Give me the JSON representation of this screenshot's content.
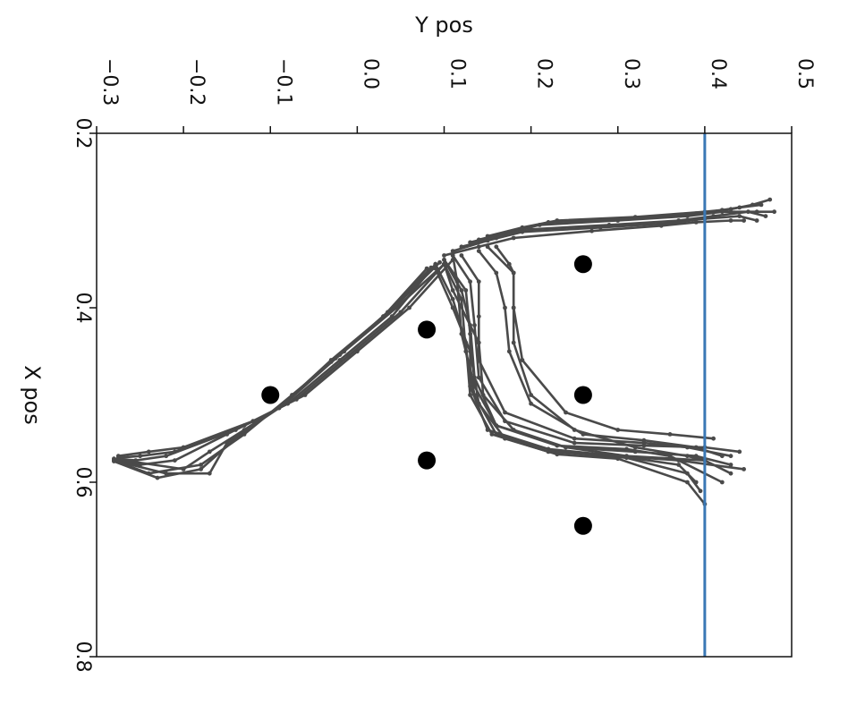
{
  "chart_data": {
    "type": "line",
    "xlabel": "X pos",
    "ylabel": "Y pos",
    "xlim": [
      0.2,
      0.8
    ],
    "ylim": [
      -0.3,
      0.5
    ],
    "x_ticks": [
      "0.2",
      "0.4",
      "0.6",
      "0.8"
    ],
    "y_ticks": [
      "−0.3",
      "−0.2",
      "−0.1",
      "0.0",
      "0.1",
      "0.2",
      "0.3",
      "0.4",
      "0.5"
    ],
    "grid": false,
    "reference_line": {
      "y": 0.4,
      "color": "#3a78b5"
    },
    "obstacles": [
      {
        "x": 0.35,
        "y": 0.26
      },
      {
        "x": 0.425,
        "y": 0.08
      },
      {
        "x": 0.5,
        "y": -0.1
      },
      {
        "x": 0.5,
        "y": 0.26
      },
      {
        "x": 0.575,
        "y": 0.08
      },
      {
        "x": 0.65,
        "y": 0.26
      }
    ],
    "trajectory_color": "#4a4a4a",
    "series": [
      {
        "x": [
          0.325,
          0.315,
          0.305,
          0.3,
          0.295,
          0.29,
          0.29,
          0.29
        ],
        "y": [
          0.13,
          0.17,
          0.21,
          0.3,
          0.38,
          0.42,
          0.46,
          0.48
        ]
      },
      {
        "x": [
          0.33,
          0.32,
          0.31,
          0.305,
          0.3,
          0.295,
          0.29,
          0.295
        ],
        "y": [
          0.12,
          0.16,
          0.2,
          0.29,
          0.37,
          0.41,
          0.45,
          0.47
        ]
      },
      {
        "x": [
          0.322,
          0.312,
          0.302,
          0.298,
          0.292,
          0.288,
          0.285,
          0.282
        ],
        "y": [
          0.14,
          0.18,
          0.22,
          0.31,
          0.39,
          0.42,
          0.44,
          0.465
        ]
      },
      {
        "x": [
          0.335,
          0.323,
          0.313,
          0.308,
          0.303,
          0.298,
          0.295,
          0.3
        ],
        "y": [
          0.11,
          0.15,
          0.19,
          0.28,
          0.36,
          0.4,
          0.44,
          0.46
        ]
      },
      {
        "x": [
          0.318,
          0.308,
          0.3,
          0.296,
          0.29,
          0.287,
          0.282,
          0.276
        ],
        "y": [
          0.15,
          0.19,
          0.23,
          0.32,
          0.4,
          0.43,
          0.455,
          0.475
        ]
      },
      {
        "x": [
          0.34,
          0.33,
          0.32,
          0.312,
          0.306,
          0.302,
          0.3,
          0.3
        ],
        "y": [
          0.1,
          0.14,
          0.18,
          0.27,
          0.35,
          0.39,
          0.43,
          0.445
        ]
      },
      {
        "x": [
          0.33,
          0.36,
          0.4,
          0.44,
          0.5,
          0.54,
          0.56,
          0.57,
          0.575
        ],
        "y": [
          0.15,
          0.18,
          0.18,
          0.18,
          0.2,
          0.25,
          0.32,
          0.38,
          0.4
        ]
      },
      {
        "x": [
          0.33,
          0.35,
          0.36,
          0.4,
          0.46,
          0.52,
          0.54,
          0.545,
          0.55
        ],
        "y": [
          0.16,
          0.175,
          0.18,
          0.18,
          0.19,
          0.24,
          0.3,
          0.36,
          0.41
        ]
      },
      {
        "x": [
          0.335,
          0.36,
          0.4,
          0.45,
          0.51,
          0.545,
          0.552,
          0.56,
          0.57
        ],
        "y": [
          0.14,
          0.16,
          0.17,
          0.175,
          0.2,
          0.26,
          0.33,
          0.39,
          0.42
        ]
      },
      {
        "x": [
          0.34,
          0.37,
          0.41,
          0.46,
          0.52,
          0.55,
          0.555,
          0.56,
          0.57
        ],
        "y": [
          0.12,
          0.14,
          0.14,
          0.14,
          0.17,
          0.25,
          0.33,
          0.38,
          0.43
        ]
      },
      {
        "x": [
          0.34,
          0.37,
          0.42,
          0.48,
          0.53,
          0.555,
          0.558,
          0.56,
          0.565
        ],
        "y": [
          0.11,
          0.13,
          0.135,
          0.14,
          0.17,
          0.25,
          0.33,
          0.4,
          0.44
        ]
      },
      {
        "x": [
          0.345,
          0.38,
          0.42,
          0.48,
          0.535,
          0.56,
          0.565,
          0.57,
          0.58
        ],
        "y": [
          0.1,
          0.12,
          0.13,
          0.135,
          0.16,
          0.24,
          0.32,
          0.39,
          0.43
        ]
      },
      {
        "x": [
          0.345,
          0.38,
          0.43,
          0.49,
          0.54,
          0.562,
          0.57,
          0.575,
          0.585
        ],
        "y": [
          0.1,
          0.125,
          0.13,
          0.13,
          0.15,
          0.22,
          0.3,
          0.37,
          0.445
        ]
      },
      {
        "x": [
          0.35,
          0.39,
          0.44,
          0.5,
          0.545,
          0.565,
          0.57,
          0.58,
          0.6
        ],
        "y": [
          0.09,
          0.11,
          0.125,
          0.13,
          0.155,
          0.22,
          0.3,
          0.37,
          0.39
        ]
      },
      {
        "x": [
          0.35,
          0.39,
          0.45,
          0.5,
          0.545,
          0.565,
          0.572,
          0.59,
          0.61
        ],
        "y": [
          0.1,
          0.12,
          0.125,
          0.135,
          0.16,
          0.23,
          0.31,
          0.38,
          0.395
        ]
      },
      {
        "x": [
          0.355,
          0.4,
          0.45,
          0.51,
          0.55,
          0.568,
          0.573,
          0.6,
          0.625
        ],
        "y": [
          0.09,
          0.11,
          0.13,
          0.14,
          0.17,
          0.23,
          0.3,
          0.38,
          0.4
        ]
      },
      {
        "x": [
          0.35,
          0.38,
          0.44,
          0.5,
          0.54,
          0.56,
          0.57,
          0.575,
          0.59
        ],
        "y": [
          0.1,
          0.11,
          0.14,
          0.145,
          0.18,
          0.24,
          0.31,
          0.4,
          0.43
        ]
      },
      {
        "x": [
          0.34,
          0.37,
          0.43,
          0.49,
          0.535,
          0.558,
          0.562,
          0.57,
          0.6
        ],
        "y": [
          0.11,
          0.115,
          0.12,
          0.135,
          0.16,
          0.23,
          0.31,
          0.36,
          0.42
        ]
      },
      {
        "x": [
          0.345,
          0.4,
          0.45,
          0.5,
          0.53,
          0.56,
          0.565,
          0.57
        ],
        "y": [
          0.11,
          0.06,
          0.0,
          -0.06,
          -0.12,
          -0.2,
          -0.24,
          -0.275
        ]
      },
      {
        "x": [
          0.35,
          0.405,
          0.455,
          0.505,
          0.535,
          0.565,
          0.57,
          0.572
        ],
        "y": [
          0.1,
          0.05,
          -0.01,
          -0.07,
          -0.13,
          -0.21,
          -0.25,
          -0.275
        ]
      },
      {
        "x": [
          0.35,
          0.41,
          0.46,
          0.51,
          0.54,
          0.57,
          0.575,
          0.573
        ],
        "y": [
          0.09,
          0.04,
          -0.02,
          -0.08,
          -0.14,
          -0.22,
          -0.255,
          -0.28
        ]
      },
      {
        "x": [
          0.355,
          0.41,
          0.46,
          0.515,
          0.545,
          0.575,
          0.58,
          0.574
        ],
        "y": [
          0.08,
          0.03,
          -0.03,
          -0.09,
          -0.15,
          -0.21,
          -0.25,
          -0.28
        ]
      },
      {
        "x": [
          0.35,
          0.4,
          0.45,
          0.5,
          0.545,
          0.58,
          0.59,
          0.575
        ],
        "y": [
          0.1,
          0.045,
          -0.015,
          -0.075,
          -0.13,
          -0.18,
          -0.24,
          -0.28
        ]
      },
      {
        "x": [
          0.352,
          0.405,
          0.458,
          0.51,
          0.55,
          0.585,
          0.595,
          0.576
        ],
        "y": [
          0.09,
          0.035,
          -0.025,
          -0.085,
          -0.14,
          -0.18,
          -0.23,
          -0.28
        ]
      },
      {
        "x": [
          0.354,
          0.41,
          0.462,
          0.515,
          0.555,
          0.59,
          0.59,
          0.575
        ],
        "y": [
          0.085,
          0.03,
          -0.03,
          -0.09,
          -0.15,
          -0.17,
          -0.22,
          -0.28
        ]
      },
      {
        "x": [
          0.348,
          0.402,
          0.454,
          0.507,
          0.54,
          0.565,
          0.585,
          0.574
        ],
        "y": [
          0.095,
          0.04,
          -0.02,
          -0.08,
          -0.13,
          -0.17,
          -0.2,
          -0.275
        ]
      }
    ]
  }
}
